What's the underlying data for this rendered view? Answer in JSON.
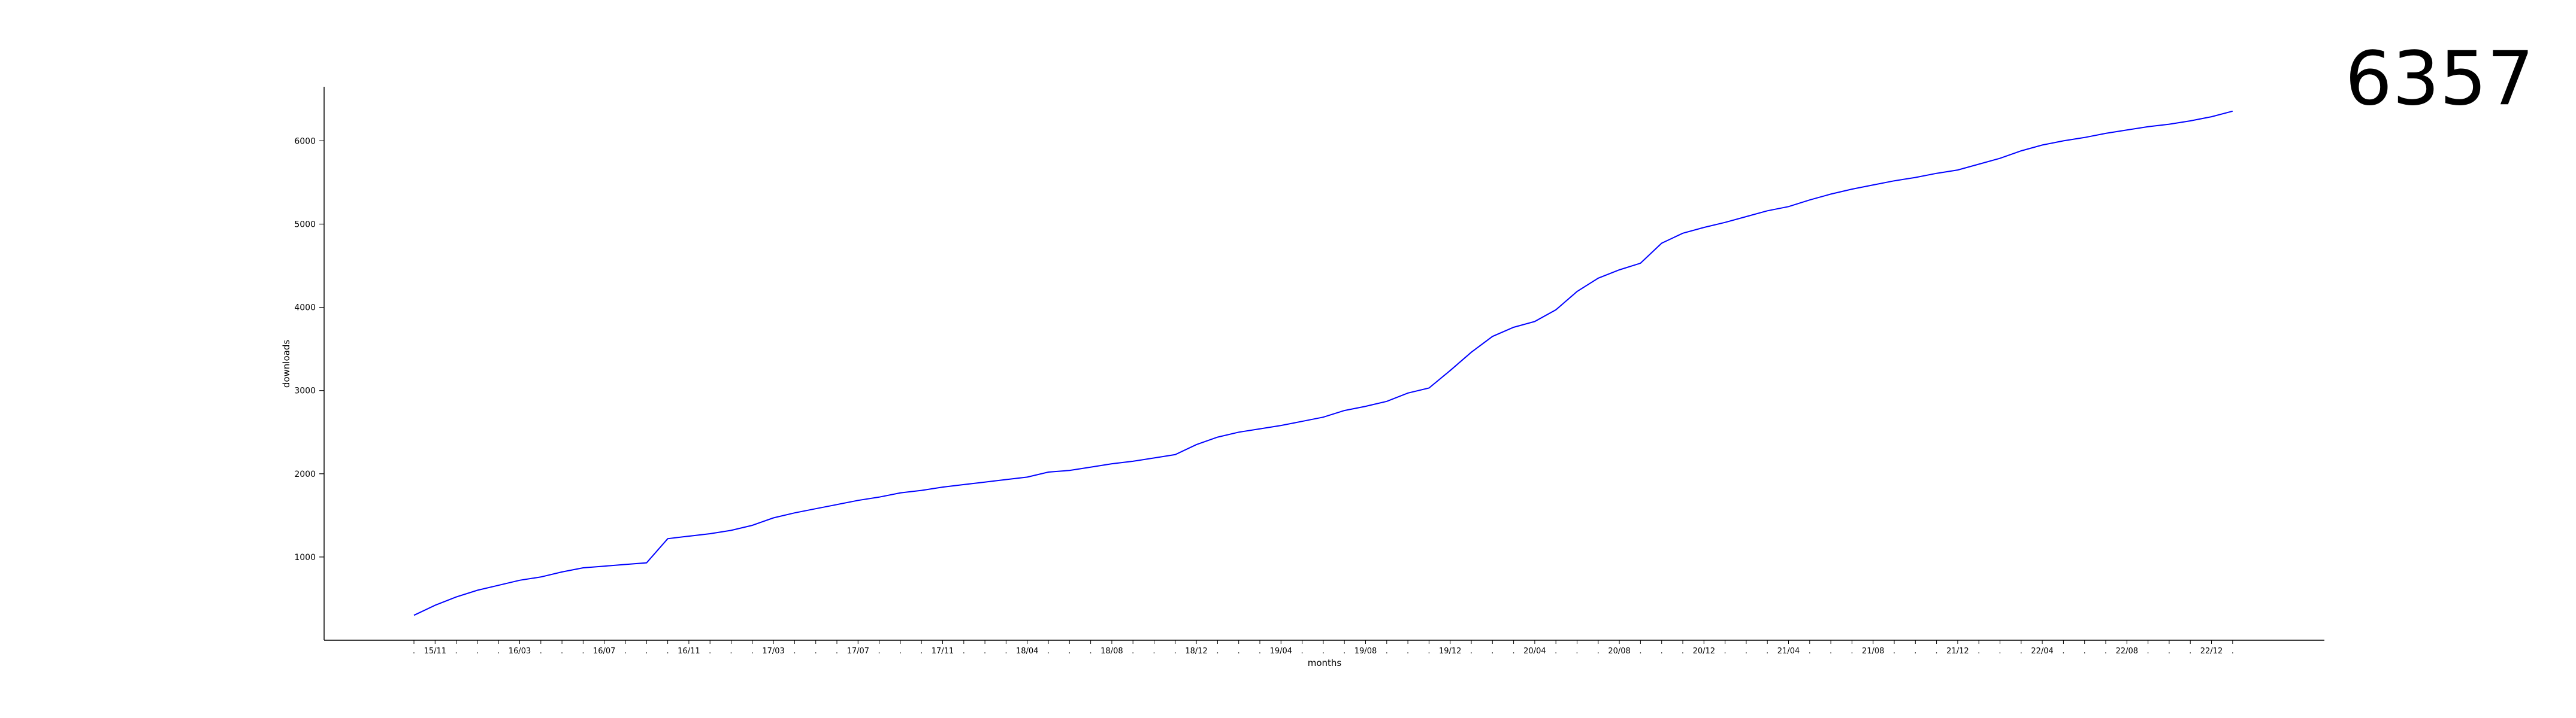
{
  "headline": {
    "total": "6357"
  },
  "chart_data": {
    "type": "line",
    "xlabel": "months",
    "ylabel": "downloads",
    "ylim": [
      0,
      6650
    ],
    "yticks": [
      1000,
      2000,
      3000,
      4000,
      5000,
      6000
    ],
    "x_tick_labels": [
      "15/11",
      "16/03",
      "16/07",
      "16/11",
      "17/03",
      "17/07",
      "17/11",
      "18/04",
      "18/08",
      "18/12",
      "19/04",
      "19/08",
      "19/12",
      "20/04",
      "20/08",
      "20/12",
      "21/04",
      "21/08",
      "21/12",
      "22/04",
      "22/08",
      "22/12"
    ],
    "minor_tick_marker": ".",
    "grid": false,
    "color": "#0000ff",
    "series": [
      {
        "values": [
          300,
          420,
          520,
          600,
          660,
          720,
          760,
          820,
          870,
          890,
          910,
          930,
          1220,
          1250,
          1280,
          1320,
          1380,
          1470,
          1530,
          1580,
          1630,
          1680,
          1720,
          1770,
          1800,
          1840,
          1870,
          1900,
          1930,
          1960,
          2020,
          2040,
          2080,
          2120,
          2150,
          2190,
          2230,
          2350,
          2440,
          2500,
          2540,
          2580,
          2630,
          2680,
          2760,
          2810,
          2870,
          2970,
          3030,
          3240,
          3460,
          3650,
          3760,
          3830,
          3970,
          4190,
          4350,
          4450,
          4530,
          4770,
          4890,
          4960,
          5020,
          5090,
          5160,
          5210,
          5290,
          5360,
          5420,
          5470,
          5520,
          5560,
          5610,
          5650,
          5720,
          5790,
          5880,
          5950,
          6000,
          6040,
          6090,
          6130,
          6170,
          6200,
          6240,
          6290,
          6357
        ]
      }
    ]
  }
}
